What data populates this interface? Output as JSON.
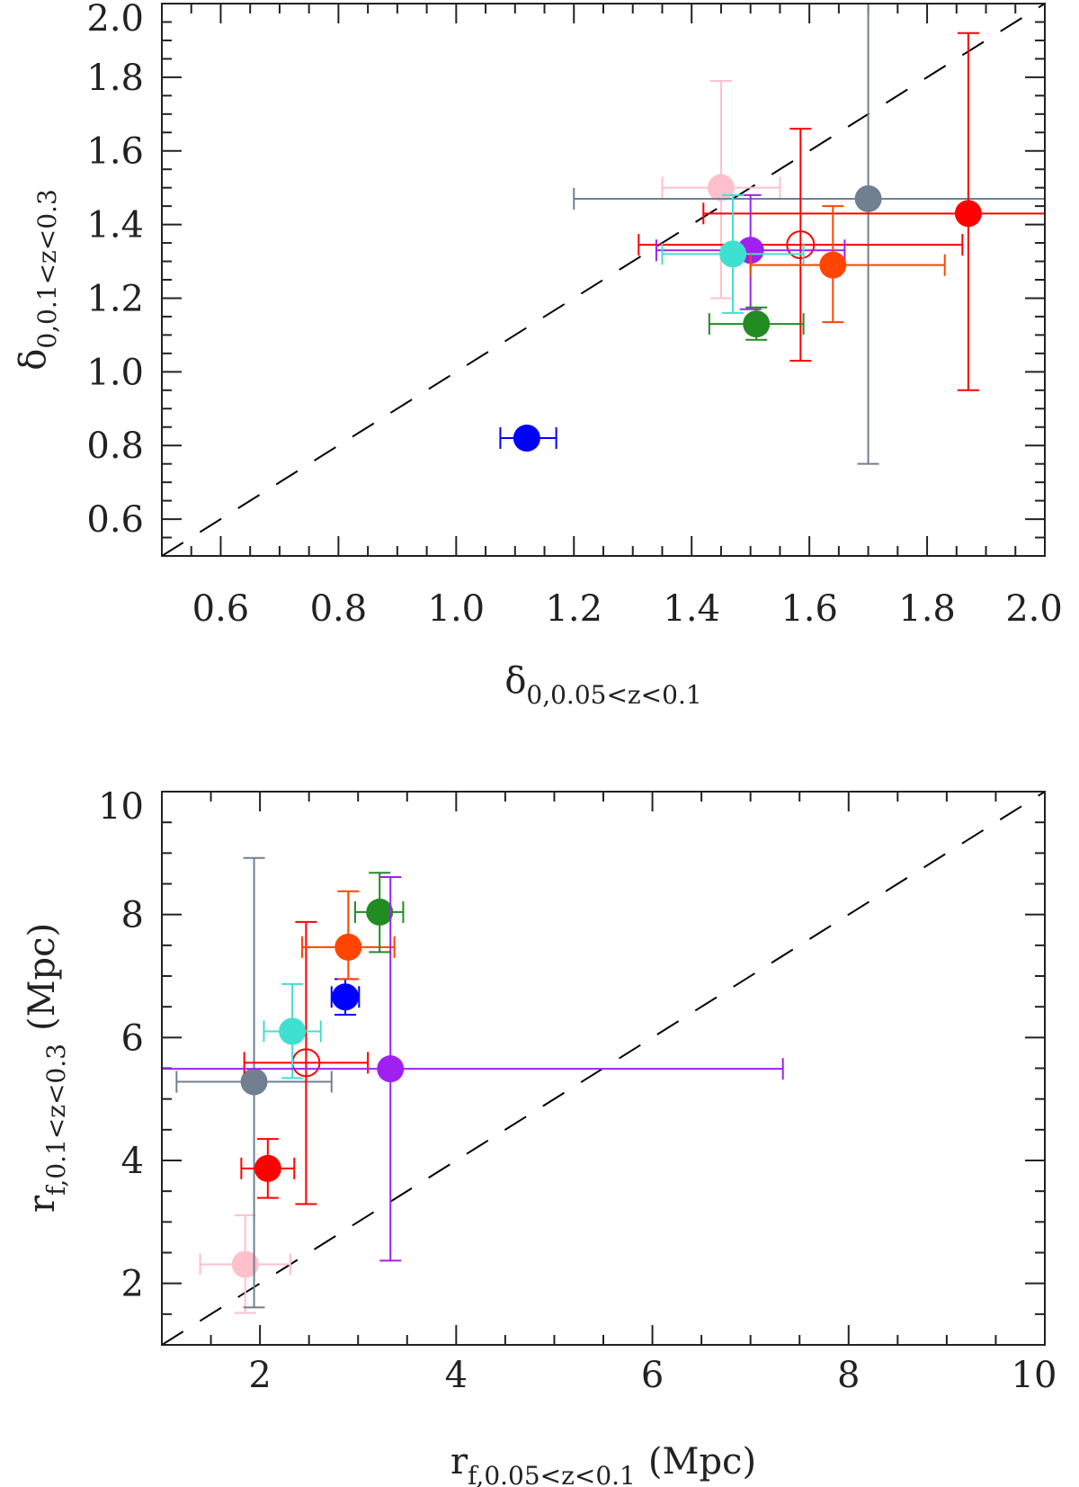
{
  "chart_data": [
    {
      "type": "scatter",
      "xlabel": {
        "main": "δ",
        "sub": "0,0.05<z<0.1"
      },
      "ylabel": {
        "main": "δ",
        "sub": "0,0.1<z<0.3"
      },
      "xlim": [
        0.5,
        2.0
      ],
      "ylim": [
        0.5,
        2.0
      ],
      "xticks": [
        "0.6",
        "0.8",
        "1.0",
        "1.2",
        "1.4",
        "1.6",
        "1.8",
        "2.0"
      ],
      "yticks": [
        "0.6",
        "0.8",
        "1.0",
        "1.2",
        "1.4",
        "1.6",
        "1.8",
        "2.0"
      ],
      "reference_line": "y = x (dashed)",
      "grid": false,
      "points": [
        {
          "color": "#ffc0cb",
          "filled": true,
          "x": 1.45,
          "y": 1.5,
          "xerr": [
            1.35,
            1.55
          ],
          "yerr": [
            1.2,
            1.79
          ]
        },
        {
          "color": "#708090",
          "filled": true,
          "x": 1.7,
          "y": 1.47,
          "xerr": [
            1.2,
            2.1
          ],
          "yerr": [
            0.75,
            2.1
          ]
        },
        {
          "color": "#ff0000",
          "filled": true,
          "x": 1.87,
          "y": 1.43,
          "xerr": [
            1.42,
            2.1
          ],
          "yerr": [
            0.95,
            1.92
          ]
        },
        {
          "color": "#ff0000",
          "filled": false,
          "x": 1.585,
          "y": 1.345,
          "xerr": [
            1.31,
            1.86
          ],
          "yerr": [
            1.03,
            1.66
          ]
        },
        {
          "color": "#a020f0",
          "filled": true,
          "x": 1.5,
          "y": 1.33,
          "xerr": [
            1.34,
            1.66
          ],
          "yerr": [
            1.17,
            1.48
          ]
        },
        {
          "color": "#40e0d0",
          "filled": true,
          "x": 1.47,
          "y": 1.32,
          "xerr": [
            1.35,
            1.59
          ],
          "yerr": [
            1.16,
            1.48
          ]
        },
        {
          "color": "#ff4500",
          "filled": true,
          "x": 1.64,
          "y": 1.29,
          "xerr": [
            1.5,
            1.83
          ],
          "yerr": [
            1.135,
            1.45
          ]
        },
        {
          "color": "#228b22",
          "filled": true,
          "x": 1.51,
          "y": 1.13,
          "xerr": [
            1.43,
            1.59
          ],
          "yerr": [
            1.087,
            1.175
          ]
        },
        {
          "color": "#0000ff",
          "filled": true,
          "x": 1.12,
          "y": 0.82,
          "xerr": [
            1.075,
            1.17
          ],
          "yerr": [
            0.8,
            0.84
          ]
        }
      ]
    },
    {
      "type": "scatter",
      "xlabel": {
        "main": "r",
        "sub": "f,0.05<z<0.1",
        "unit": "(Mpc)"
      },
      "ylabel": {
        "main": "r",
        "sub": "f,0.1<z<0.3",
        "unit": "(Mpc)"
      },
      "xlim": [
        1,
        10
      ],
      "ylim": [
        1,
        10
      ],
      "xticks": [
        "2",
        "4",
        "6",
        "8",
        "10"
      ],
      "yticks": [
        "2",
        "4",
        "6",
        "8",
        "10"
      ],
      "reference_line": "y = x (dashed)",
      "grid": false,
      "points": [
        {
          "color": "#ffc0cb",
          "filled": true,
          "x": 1.85,
          "y": 2.31,
          "xerr": [
            1.39,
            2.31
          ],
          "yerr": [
            1.52,
            3.11
          ]
        },
        {
          "color": "#708090",
          "filled": true,
          "x": 1.94,
          "y": 5.28,
          "xerr": [
            1.15,
            2.73
          ],
          "yerr": [
            1.61,
            8.92
          ]
        },
        {
          "color": "#ff0000",
          "filled": true,
          "x": 2.08,
          "y": 3.87,
          "xerr": [
            1.81,
            2.35
          ],
          "yerr": [
            3.39,
            4.35
          ]
        },
        {
          "color": "#ff0000",
          "filled": false,
          "x": 2.47,
          "y": 5.59,
          "xerr": [
            1.84,
            3.1
          ],
          "yerr": [
            3.29,
            7.88
          ]
        },
        {
          "color": "#40e0d0",
          "filled": true,
          "x": 2.33,
          "y": 6.1,
          "xerr": [
            2.04,
            2.62
          ],
          "yerr": [
            5.34,
            6.87
          ]
        },
        {
          "color": "#0000ff",
          "filled": true,
          "x": 2.87,
          "y": 6.66,
          "xerr": [
            2.73,
            3.01
          ],
          "yerr": [
            6.37,
            6.95
          ]
        },
        {
          "color": "#ff4500",
          "filled": true,
          "x": 2.9,
          "y": 7.47,
          "xerr": [
            2.43,
            3.37
          ],
          "yerr": [
            6.95,
            8.38
          ]
        },
        {
          "color": "#228b22",
          "filled": true,
          "x": 3.22,
          "y": 8.04,
          "xerr": [
            2.97,
            3.46
          ],
          "yerr": [
            7.39,
            8.68
          ]
        },
        {
          "color": "#a020f0",
          "filled": true,
          "x": 3.33,
          "y": 5.49,
          "xerr": [
            0.5,
            7.33
          ],
          "yerr": [
            2.37,
            8.61
          ]
        }
      ]
    }
  ]
}
